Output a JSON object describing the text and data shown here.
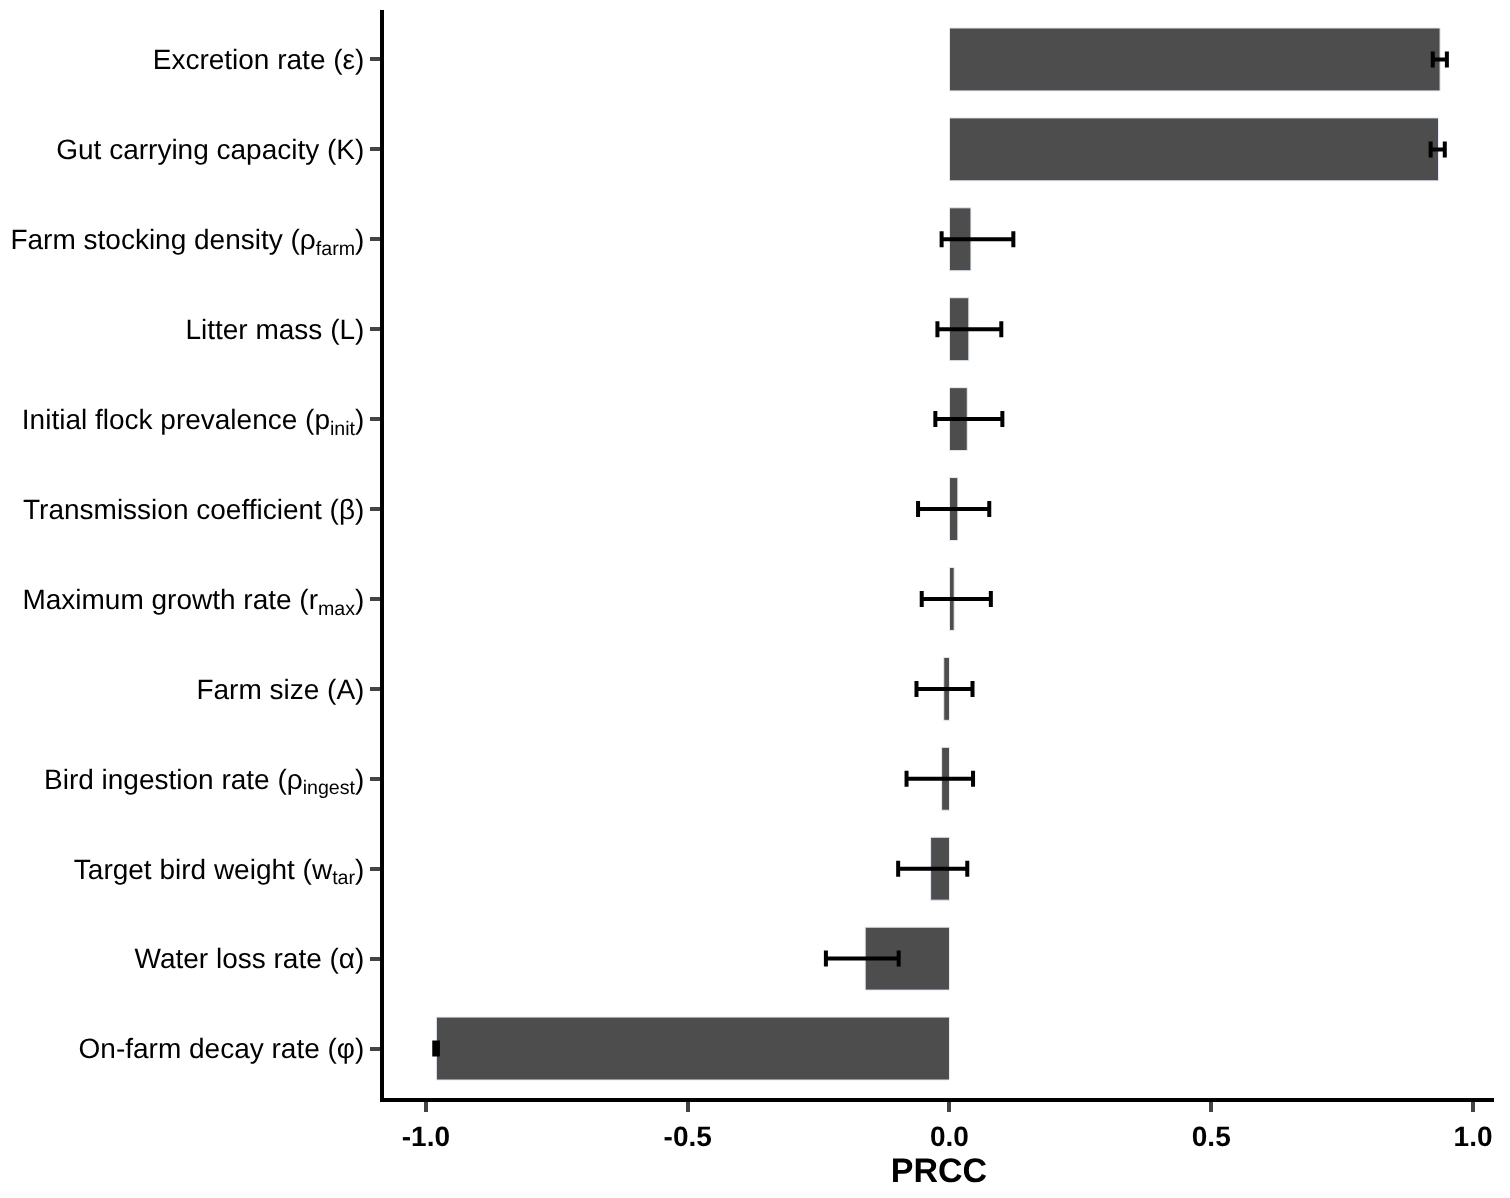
{
  "chart_data": {
    "type": "bar",
    "orientation": "horizontal",
    "xlabel": "PRCC",
    "categories": [
      "Excretion rate (ε)",
      "Gut carrying capacity (K)",
      "Farm stocking density (ρ$_{farm}$)",
      "Litter mass (L)",
      "Initial flock prevalence (p$_{init}$)",
      "Transmission coefficient (β)",
      "Maximum growth rate (r$_{max}$)",
      "Farm size (A)",
      "Bird ingestion rate (ρ$_{ingest}$)",
      "Target bird weight (w$_{tar}$)",
      "Water loss rate (α)",
      "On-farm decay rate (φ)"
    ],
    "values": [
      0.937,
      0.934,
      0.041,
      0.037,
      0.034,
      0.016,
      0.009,
      -0.011,
      -0.015,
      -0.036,
      -0.161,
      -0.98
    ],
    "errors": [
      [
        0.923,
        0.95
      ],
      [
        0.919,
        0.946
      ],
      [
        -0.015,
        0.122
      ],
      [
        -0.023,
        0.099
      ],
      [
        -0.027,
        0.101
      ],
      [
        -0.06,
        0.076
      ],
      [
        -0.053,
        0.079
      ],
      [
        -0.063,
        0.044
      ],
      [
        -0.082,
        0.045
      ],
      [
        -0.098,
        0.034
      ],
      [
        -0.236,
        -0.097
      ],
      [
        -0.984,
        -0.977
      ]
    ],
    "color": "#4d4d4d",
    "xlim": [
      -1.08,
      1.04
    ],
    "xticks": [
      {
        "value": -1,
        "label": "-1.0"
      },
      {
        "value": -0.5,
        "label": "-0.5"
      },
      {
        "value": 0,
        "label": "0.0"
      },
      {
        "value": 0.5,
        "label": "0.5"
      },
      {
        "value": 1,
        "label": "1.0"
      }
    ]
  }
}
